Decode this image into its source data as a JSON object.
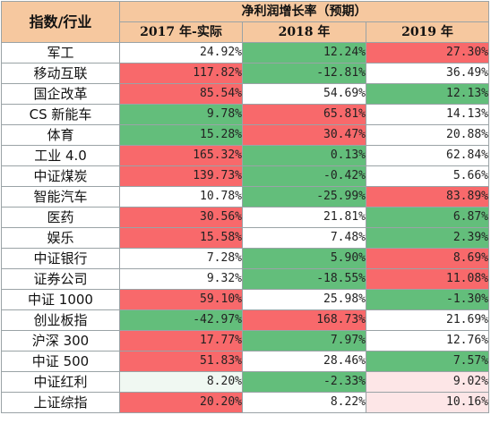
{
  "colors": {
    "header_bg": "#f6c89f",
    "red": "#f8696b",
    "green": "#63be7b",
    "white": "#ffffff",
    "light_pink": "#fde6e7",
    "light_green": "#f0f8f2"
  },
  "header": {
    "corner": "指数/行业",
    "group": "净利润增长率（预期）",
    "years": [
      "2017 年-实际",
      "2018 年",
      "2019 年"
    ]
  },
  "rows": [
    {
      "name": "军工",
      "cells": [
        {
          "v": "24.92%",
          "c": "white"
        },
        {
          "v": "12.24%",
          "c": "green"
        },
        {
          "v": "27.30%",
          "c": "red"
        }
      ]
    },
    {
      "name": "移动互联",
      "cells": [
        {
          "v": "117.82%",
          "c": "red"
        },
        {
          "v": "-12.81%",
          "c": "green"
        },
        {
          "v": "36.49%",
          "c": "white"
        }
      ]
    },
    {
      "name": "国企改革",
      "cells": [
        {
          "v": "85.54%",
          "c": "red"
        },
        {
          "v": "54.69%",
          "c": "white"
        },
        {
          "v": "12.13%",
          "c": "green"
        }
      ]
    },
    {
      "name": "CS 新能车",
      "cells": [
        {
          "v": "9.78%",
          "c": "green"
        },
        {
          "v": "65.81%",
          "c": "red"
        },
        {
          "v": "14.13%",
          "c": "white"
        }
      ]
    },
    {
      "name": "体育",
      "cells": [
        {
          "v": "15.28%",
          "c": "green"
        },
        {
          "v": "30.47%",
          "c": "red"
        },
        {
          "v": "20.88%",
          "c": "white"
        }
      ]
    },
    {
      "name": "工业 4.0",
      "cells": [
        {
          "v": "165.32%",
          "c": "red"
        },
        {
          "v": "0.13%",
          "c": "green"
        },
        {
          "v": "62.84%",
          "c": "white"
        }
      ]
    },
    {
      "name": "中证煤炭",
      "cells": [
        {
          "v": "139.73%",
          "c": "red"
        },
        {
          "v": "-0.42%",
          "c": "green"
        },
        {
          "v": "5.66%",
          "c": "white"
        }
      ]
    },
    {
      "name": "智能汽车",
      "cells": [
        {
          "v": "10.78%",
          "c": "white"
        },
        {
          "v": "-25.99%",
          "c": "green"
        },
        {
          "v": "83.89%",
          "c": "red"
        }
      ]
    },
    {
      "name": "医药",
      "cells": [
        {
          "v": "30.56%",
          "c": "red"
        },
        {
          "v": "21.81%",
          "c": "white"
        },
        {
          "v": "6.87%",
          "c": "green"
        }
      ]
    },
    {
      "name": "娱乐",
      "cells": [
        {
          "v": "15.58%",
          "c": "red"
        },
        {
          "v": "7.48%",
          "c": "white"
        },
        {
          "v": "2.39%",
          "c": "green"
        }
      ]
    },
    {
      "name": "中证银行",
      "cells": [
        {
          "v": "7.28%",
          "c": "white"
        },
        {
          "v": "5.90%",
          "c": "green"
        },
        {
          "v": "8.69%",
          "c": "red"
        }
      ]
    },
    {
      "name": "证券公司",
      "cells": [
        {
          "v": "9.32%",
          "c": "white"
        },
        {
          "v": "-18.55%",
          "c": "green"
        },
        {
          "v": "11.08%",
          "c": "red"
        }
      ]
    },
    {
      "name": "中证 1000",
      "cells": [
        {
          "v": "59.10%",
          "c": "red"
        },
        {
          "v": "25.98%",
          "c": "white"
        },
        {
          "v": "-1.30%",
          "c": "green"
        }
      ]
    },
    {
      "name": "创业板指",
      "cells": [
        {
          "v": "-42.97%",
          "c": "green"
        },
        {
          "v": "168.73%",
          "c": "red"
        },
        {
          "v": "21.69%",
          "c": "white"
        }
      ]
    },
    {
      "name": "沪深 300",
      "cells": [
        {
          "v": "17.77%",
          "c": "red"
        },
        {
          "v": "7.97%",
          "c": "green"
        },
        {
          "v": "12.76%",
          "c": "white"
        }
      ]
    },
    {
      "name": "中证 500",
      "cells": [
        {
          "v": "51.83%",
          "c": "red"
        },
        {
          "v": "28.46%",
          "c": "white"
        },
        {
          "v": "7.57%",
          "c": "green"
        }
      ]
    },
    {
      "name": "中证红利",
      "cells": [
        {
          "v": "8.20%",
          "c": "light_green"
        },
        {
          "v": "-2.33%",
          "c": "green"
        },
        {
          "v": "9.02%",
          "c": "light_pink"
        }
      ]
    },
    {
      "name": "上证综指",
      "cells": [
        {
          "v": "20.20%",
          "c": "red"
        },
        {
          "v": "8.22%",
          "c": "white"
        },
        {
          "v": "10.16%",
          "c": "light_pink"
        }
      ]
    }
  ]
}
